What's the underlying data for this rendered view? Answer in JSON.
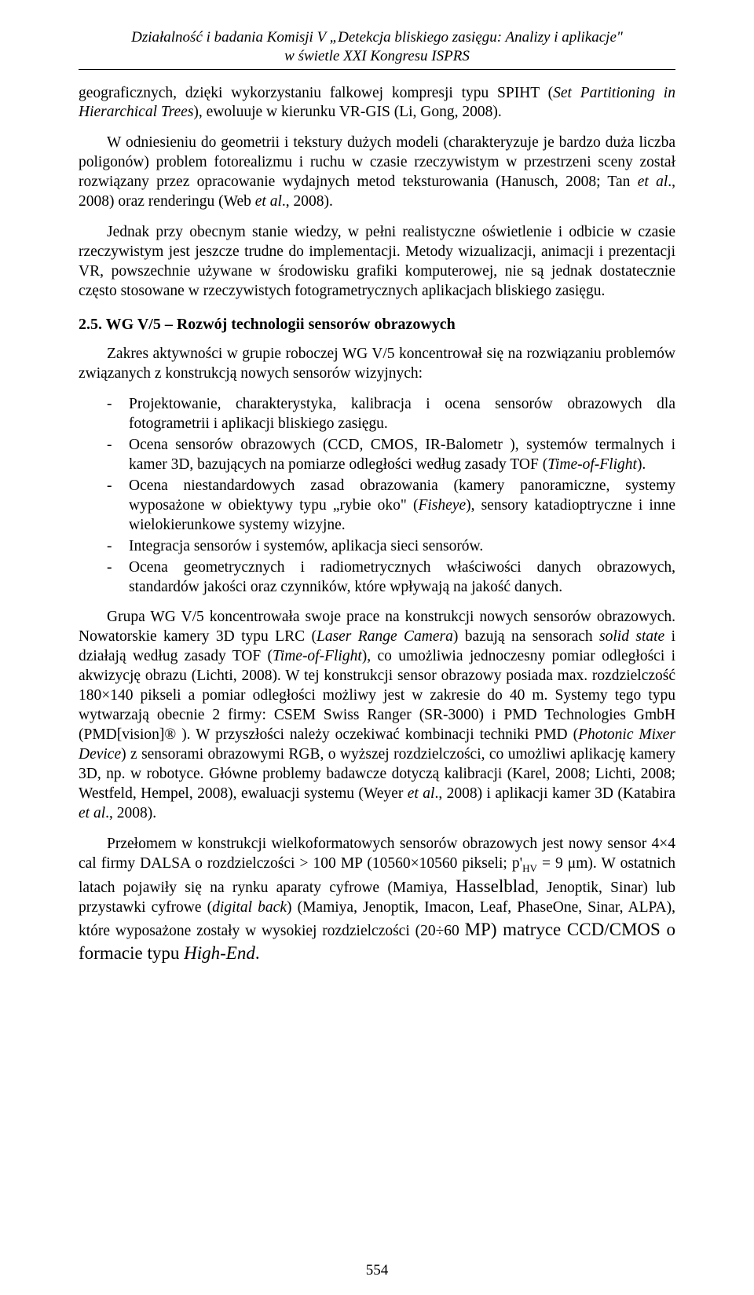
{
  "header": {
    "line1": "Działalność i badania Komisji V „Detekcja bliskiego zasięgu: Analizy i aplikacje\"",
    "line2": "w świetle XXI Kongresu ISPRS"
  },
  "page_number": "554",
  "section_heading": "2.5.  WG V/5 – Rozwój technologii sensorów obrazowych",
  "paragraphs": {
    "p1_pre": "geograficznych, dzięki wykorzystaniu falkowej kompresji typu SPIHT (",
    "p1_it1": "Set Partitioning in Hierarchical Trees",
    "p1_post": "), ewoluuje w kierunku VR-GIS (Li, Gong, 2008).",
    "p2_a": "W odniesieniu do geometrii i tekstury dużych modeli (charakteryzuje je bardzo duża liczba poligonów) problem fotorealizmu i ruchu w czasie rzeczywistym w przestrzeni sceny został rozwiązany przez opracowanie wydajnych metod teksturowania (Hanusch, 2008; Tan ",
    "p2_it1": "et al",
    "p2_b": "., 2008) oraz renderingu (Web ",
    "p2_it2": "et al",
    "p2_c": "., 2008).",
    "p3": "Jednak przy obecnym stanie wiedzy, w pełni realistyczne oświetlenie i odbicie w czasie rzeczywistym jest jeszcze trudne do implementacji. Metody wizualizacji, animacji i  prezentacji VR, powszechnie używane w środowisku grafiki komputerowej, nie są jednak dostatecznie często stosowane w rzeczywistych fotogrametrycznych aplikacjach bliskiego zasięgu.",
    "p4": "Zakres aktywności w grupie roboczej WG V/5 koncentrował się na rozwiązaniu problemów związanych z konstrukcją nowych sensorów wizyjnych:",
    "li1": "Projektowanie, charakterystyka, kalibracja i ocena sensorów obrazowych dla fotogrametrii i aplikacji bliskiego zasięgu.",
    "li2_a": "Ocena sensorów obrazowych (CCD, CMOS, IR-Balometr ), systemów termalnych i kamer 3D, bazujących na pomiarze odległości według zasady TOF (",
    "li2_it": "Time-of-Flight",
    "li2_b": ").",
    "li3_a": "Ocena niestandardowych zasad obrazowania (kamery panoramiczne, systemy wyposażone w obiektywy typu „rybie oko\" (",
    "li3_it": "Fisheye",
    "li3_b": "), sensory katadioptryczne i inne wielokierunkowe systemy wizyjne.",
    "li4": "Integracja sensorów i systemów, aplikacja sieci sensorów.",
    "li5": "Ocena geometrycznych i radiometrycznych właściwości danych obrazowych, standardów jakości oraz czynników, które wpływają na jakość danych.",
    "p5_a": "Grupa WG V/5 koncentrowała swoje prace na konstrukcji nowych sensorów obrazowych. Nowatorskie kamery 3D typu LRC (",
    "p5_it1": "Laser Range Camera",
    "p5_b": ") bazują na sensorach ",
    "p5_it2": "solid state",
    "p5_c": " i działają według zasady TOF (",
    "p5_it3": "Time-of-Flight",
    "p5_d": "), co umożliwia jednoczesny pomiar odległości i akwizycję obrazu (Lichti, 2008). W tej konstrukcji sensor obrazowy posiada max. rozdzielczość 180×140 pikseli a pomiar odległości możliwy jest w zakresie do 40 m. Systemy tego typu wytwarzają obecnie 2 firmy: CSEM Swiss Ranger (SR-3000) i PMD Technologies GmbH (PMD[vision]® ). W przyszłości należy oczekiwać kombinacji techniki PMD (",
    "p5_it4": "Photonic Mixer Device",
    "p5_e": ") z sensorami obrazowymi RGB, o wyższej rozdzielczości, co umożliwi aplikację kamery 3D, np. w robotyce. Główne problemy badawcze dotyczą kalibracji (Karel, 2008; Lichti, 2008; Westfeld, Hempel, 2008), ewaluacji systemu (Weyer ",
    "p5_it5": "et al",
    "p5_f": "., 2008) i aplikacji kamer 3D (Katabira ",
    "p5_it6": "et al",
    "p5_g": "., 2008).",
    "p6_a": "Przełomem w konstrukcji wielkoformatowych sensorów obrazowych jest nowy sensor 4×4 cal firmy DALSA o rozdzielczości > 100 MP (10560×10560 pikseli; p'",
    "p6_sub": "HV",
    "p6_b": " = 9 μm). W ostatnich latach pojawiły się na rynku aparaty cyfrowe (Mamiya, ",
    "p6_big1": "Hasselblad",
    "p6_c": ", Jenoptik, Sinar) lub przystawki cyfrowe (",
    "p6_it1": "digital back",
    "p6_d": ") (Mamiya, Jenoptik, Imacon, Leaf, PhaseOne, Sinar, ALPA), które wyposażone zostały w wysokiej rozdzielczości (20÷60 ",
    "p6_big2": "MP) matryce CCD/CMOS o formacie typu ",
    "p6_it2": "High-End",
    "p6_e": "."
  }
}
